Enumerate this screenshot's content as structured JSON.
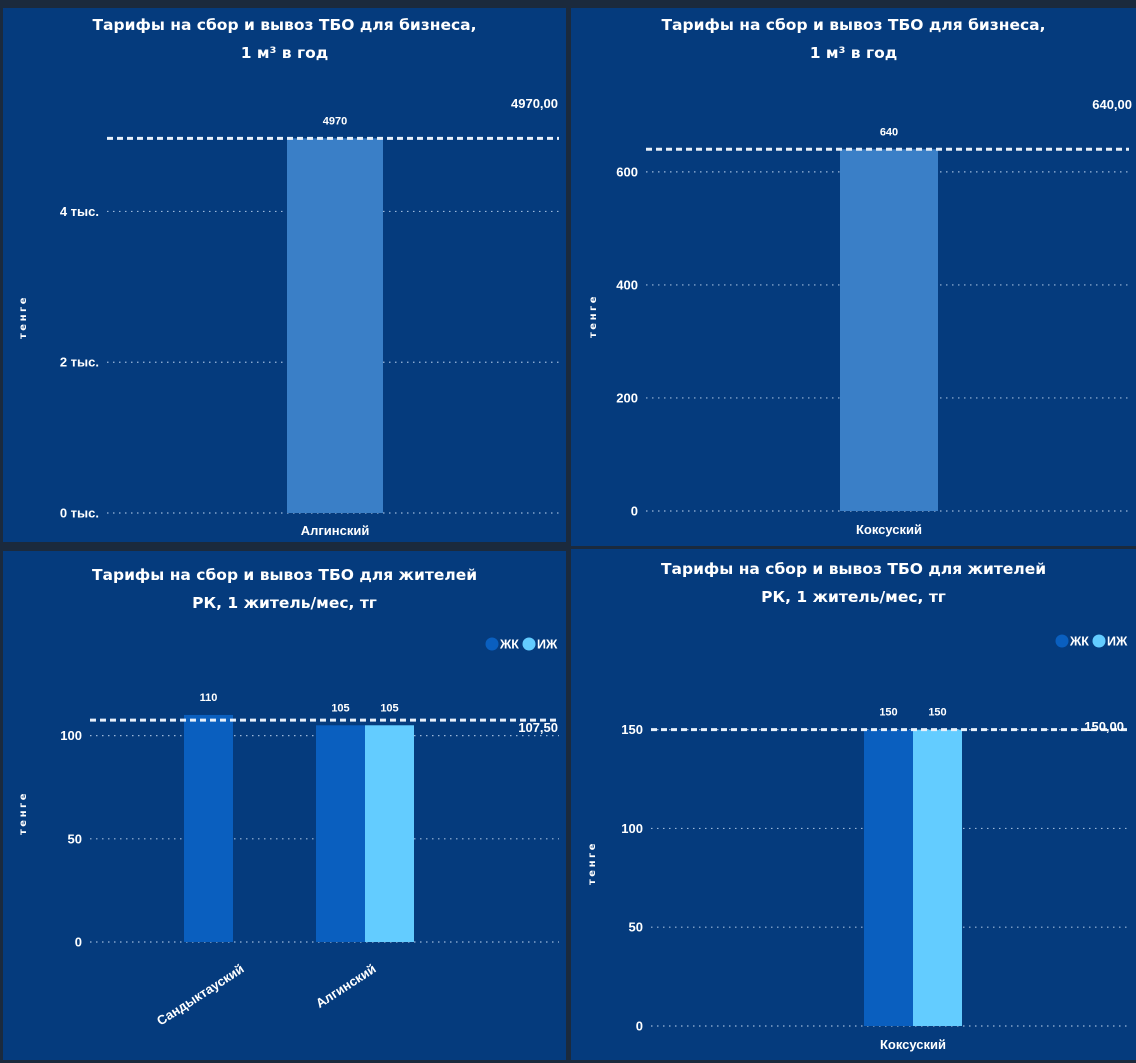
{
  "chart_data": [
    {
      "type": "bar",
      "title": "Тарифы на сбор и вывоз ТБО для бизнеса, 1 м³ в год",
      "ylabel": "тенге",
      "categories": [
        "Алгинский"
      ],
      "series": [
        {
          "values": [
            4970
          ],
          "color": "#3a7fc7"
        }
      ],
      "data_labels": [
        "4970"
      ],
      "ylim": [
        0,
        5200
      ],
      "yticks": [
        0,
        2000,
        4000
      ],
      "ytick_labels": [
        "0 тыс.",
        "2 тыс.",
        "4 тыс."
      ],
      "reference_line": {
        "value": 4970,
        "label": "4970,00"
      },
      "grid": true,
      "legend": null
    },
    {
      "type": "bar",
      "title": "Тарифы на сбор и вывоз ТБО для бизнеса, 1 м³ в год",
      "ylabel": "тенге",
      "categories": [
        "Коксуский"
      ],
      "series": [
        {
          "values": [
            640
          ],
          "color": "#3a7fc7"
        }
      ],
      "data_labels": [
        "640"
      ],
      "ylim": [
        0,
        690
      ],
      "yticks": [
        0,
        200,
        400,
        600
      ],
      "ytick_labels": [
        "0",
        "200",
        "400",
        "600"
      ],
      "reference_line": {
        "value": 640,
        "label": "640,00"
      },
      "grid": true,
      "legend": null
    },
    {
      "type": "bar",
      "title": "Тарифы на сбор и вывоз ТБО для жителей РК, 1 житель/мес, тг",
      "ylabel": "тенге",
      "categories": [
        "Сандыктауский",
        "Алгинский"
      ],
      "series": [
        {
          "name": "ЖК",
          "values": [
            110,
            105
          ],
          "color": "#0a5fbf"
        },
        {
          "name": "ИЖ",
          "values": [
            null,
            105
          ],
          "color": "#63ccff"
        }
      ],
      "ylim": [
        0,
        125
      ],
      "yticks": [
        0,
        50,
        100
      ],
      "ytick_labels": [
        "0",
        "50",
        "100"
      ],
      "reference_line": {
        "value": 107.5,
        "label": "107,50"
      },
      "grid": true,
      "legend": "top-right",
      "rotated_categories": true
    },
    {
      "type": "bar",
      "title": "Тарифы на сбор и вывоз ТБО для жителей РК, 1 житель/мес, тг",
      "ylabel": "тенге",
      "categories": [
        "Коксуский"
      ],
      "series": [
        {
          "name": "ЖК",
          "values": [
            150
          ],
          "color": "#0a5fbf"
        },
        {
          "name": "ИЖ",
          "values": [
            150
          ],
          "color": "#63ccff"
        }
      ],
      "ylim": [
        0,
        165
      ],
      "yticks": [
        0,
        50,
        100,
        150
      ],
      "ytick_labels": [
        "0",
        "50",
        "100",
        "150"
      ],
      "reference_line": {
        "value": 150,
        "label": "150,00"
      },
      "grid": true,
      "legend": "top-right"
    }
  ]
}
